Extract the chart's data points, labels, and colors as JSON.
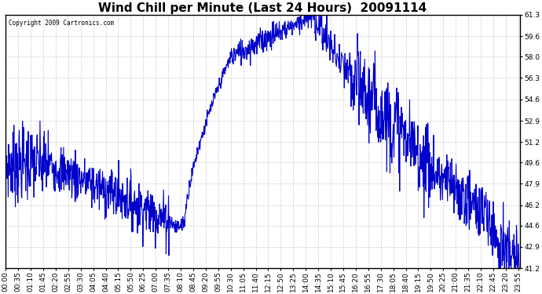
{
  "title": "Wind Chill per Minute (Last 24 Hours)  20091114",
  "copyright": "Copyright 2009 Cartronics.com",
  "line_color": "#0000CC",
  "bg_color": "#ffffff",
  "plot_bg_color": "#ffffff",
  "grid_color": "#b0b0b0",
  "ylim": [
    41.2,
    61.3
  ],
  "yticks": [
    41.2,
    42.9,
    44.6,
    46.2,
    47.9,
    49.6,
    51.2,
    52.9,
    54.6,
    56.3,
    58.0,
    59.6,
    61.3
  ],
  "title_fontsize": 11,
  "tick_fontsize": 6.5,
  "line_width": 0.8,
  "tick_interval_min": 35
}
